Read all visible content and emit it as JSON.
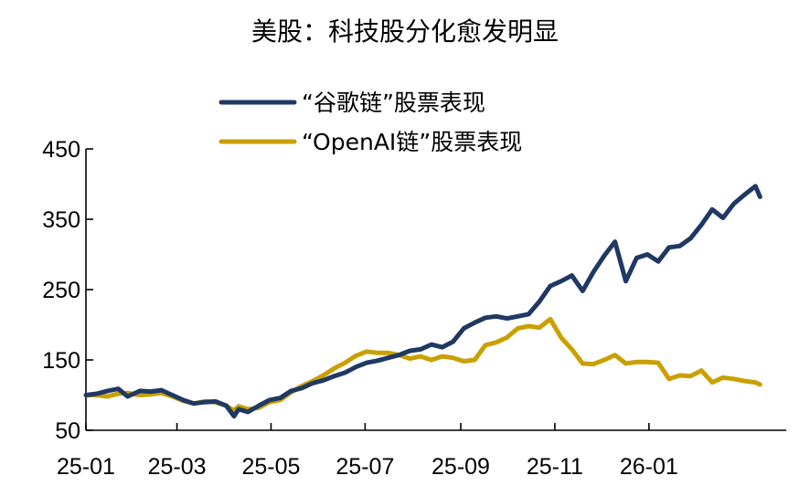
{
  "chart_data": {
    "type": "line",
    "title": "美股：科技股分化愈发明显",
    "xlabel": "",
    "ylabel": "",
    "ylim": [
      50,
      450
    ],
    "yticks": [
      50,
      150,
      250,
      350,
      450
    ],
    "xlim": [
      "2025-01-01",
      "2026-03-31"
    ],
    "xticks": [
      {
        "date": "2025-01-01",
        "label": "25-01"
      },
      {
        "date": "2025-03-01",
        "label": "25-03"
      },
      {
        "date": "2025-05-01",
        "label": "25-05"
      },
      {
        "date": "2025-07-01",
        "label": "25-07"
      },
      {
        "date": "2025-09-01",
        "label": "25-09"
      },
      {
        "date": "2025-11-01",
        "label": "25-11"
      },
      {
        "date": "2026-01-01",
        "label": "26-01"
      }
    ],
    "grid": false,
    "legend_position": "top-center",
    "series": [
      {
        "name": "“谷歌链”股票表现",
        "color": "#1f3864",
        "points": [
          [
            "2025-01-01",
            100
          ],
          [
            "2025-01-08",
            102
          ],
          [
            "2025-01-15",
            106
          ],
          [
            "2025-01-22",
            109
          ],
          [
            "2025-01-28",
            98
          ],
          [
            "2025-02-05",
            106
          ],
          [
            "2025-02-12",
            105
          ],
          [
            "2025-02-19",
            107
          ],
          [
            "2025-02-26",
            100
          ],
          [
            "2025-03-05",
            93
          ],
          [
            "2025-03-12",
            88
          ],
          [
            "2025-03-19",
            90
          ],
          [
            "2025-03-26",
            91
          ],
          [
            "2025-04-02",
            85
          ],
          [
            "2025-04-07",
            70
          ],
          [
            "2025-04-10",
            80
          ],
          [
            "2025-04-16",
            76
          ],
          [
            "2025-04-23",
            85
          ],
          [
            "2025-04-30",
            93
          ],
          [
            "2025-05-07",
            96
          ],
          [
            "2025-05-14",
            106
          ],
          [
            "2025-05-21",
            110
          ],
          [
            "2025-05-28",
            117
          ],
          [
            "2025-06-04",
            121
          ],
          [
            "2025-06-11",
            127
          ],
          [
            "2025-06-18",
            132
          ],
          [
            "2025-06-25",
            140
          ],
          [
            "2025-07-02",
            146
          ],
          [
            "2025-07-09",
            149
          ],
          [
            "2025-07-16",
            153
          ],
          [
            "2025-07-23",
            157
          ],
          [
            "2025-07-30",
            163
          ],
          [
            "2025-08-06",
            165
          ],
          [
            "2025-08-13",
            172
          ],
          [
            "2025-08-20",
            168
          ],
          [
            "2025-08-27",
            176
          ],
          [
            "2025-09-03",
            195
          ],
          [
            "2025-09-10",
            203
          ],
          [
            "2025-09-17",
            210
          ],
          [
            "2025-09-24",
            212
          ],
          [
            "2025-10-01",
            209
          ],
          [
            "2025-10-08",
            212
          ],
          [
            "2025-10-15",
            215
          ],
          [
            "2025-10-22",
            233
          ],
          [
            "2025-10-29",
            255
          ],
          [
            "2025-11-05",
            262
          ],
          [
            "2025-11-12",
            270
          ],
          [
            "2025-11-19",
            248
          ],
          [
            "2025-11-26",
            275
          ],
          [
            "2025-12-03",
            298
          ],
          [
            "2025-12-10",
            318
          ],
          [
            "2025-12-17",
            262
          ],
          [
            "2025-12-24",
            295
          ],
          [
            "2025-12-31",
            300
          ],
          [
            "2026-01-07",
            290
          ],
          [
            "2026-01-14",
            310
          ],
          [
            "2026-01-21",
            312
          ],
          [
            "2026-01-28",
            323
          ],
          [
            "2026-02-04",
            342
          ],
          [
            "2026-02-11",
            364
          ],
          [
            "2026-02-18",
            352
          ],
          [
            "2026-02-25",
            372
          ],
          [
            "2026-03-04",
            385
          ],
          [
            "2026-03-11",
            397
          ],
          [
            "2026-03-14",
            382
          ]
        ]
      },
      {
        "name": "“OpenAI链”股票表现",
        "color": "#c9a000",
        "points": [
          [
            "2025-01-01",
            100
          ],
          [
            "2025-01-08",
            100
          ],
          [
            "2025-01-15",
            98
          ],
          [
            "2025-01-22",
            102
          ],
          [
            "2025-01-28",
            103
          ],
          [
            "2025-02-05",
            100
          ],
          [
            "2025-02-12",
            101
          ],
          [
            "2025-02-19",
            103
          ],
          [
            "2025-02-26",
            98
          ],
          [
            "2025-03-05",
            92
          ],
          [
            "2025-03-12",
            88
          ],
          [
            "2025-03-19",
            91
          ],
          [
            "2025-03-26",
            90
          ],
          [
            "2025-04-02",
            85
          ],
          [
            "2025-04-07",
            78
          ],
          [
            "2025-04-10",
            84
          ],
          [
            "2025-04-16",
            80
          ],
          [
            "2025-04-23",
            82
          ],
          [
            "2025-04-30",
            90
          ],
          [
            "2025-05-07",
            93
          ],
          [
            "2025-05-14",
            104
          ],
          [
            "2025-05-21",
            113
          ],
          [
            "2025-05-28",
            120
          ],
          [
            "2025-06-04",
            128
          ],
          [
            "2025-06-11",
            138
          ],
          [
            "2025-06-18",
            146
          ],
          [
            "2025-06-25",
            156
          ],
          [
            "2025-07-02",
            162
          ],
          [
            "2025-07-09",
            160
          ],
          [
            "2025-07-16",
            160
          ],
          [
            "2025-07-23",
            157
          ],
          [
            "2025-07-30",
            152
          ],
          [
            "2025-08-06",
            155
          ],
          [
            "2025-08-13",
            150
          ],
          [
            "2025-08-20",
            155
          ],
          [
            "2025-08-27",
            153
          ],
          [
            "2025-09-03",
            148
          ],
          [
            "2025-09-10",
            150
          ],
          [
            "2025-09-17",
            171
          ],
          [
            "2025-09-24",
            175
          ],
          [
            "2025-10-01",
            182
          ],
          [
            "2025-10-08",
            195
          ],
          [
            "2025-10-15",
            198
          ],
          [
            "2025-10-22",
            196
          ],
          [
            "2025-10-29",
            208
          ],
          [
            "2025-11-05",
            182
          ],
          [
            "2025-11-12",
            165
          ],
          [
            "2025-11-19",
            145
          ],
          [
            "2025-11-26",
            144
          ],
          [
            "2025-12-03",
            150
          ],
          [
            "2025-12-10",
            157
          ],
          [
            "2025-12-17",
            145
          ],
          [
            "2025-12-24",
            147
          ],
          [
            "2025-12-31",
            147
          ],
          [
            "2026-01-07",
            146
          ],
          [
            "2026-01-14",
            123
          ],
          [
            "2026-01-21",
            128
          ],
          [
            "2026-01-28",
            127
          ],
          [
            "2026-02-04",
            135
          ],
          [
            "2026-02-11",
            118
          ],
          [
            "2026-02-18",
            125
          ],
          [
            "2026-02-25",
            123
          ],
          [
            "2026-03-04",
            120
          ],
          [
            "2026-03-11",
            118
          ],
          [
            "2026-03-14",
            115
          ]
        ]
      }
    ]
  }
}
